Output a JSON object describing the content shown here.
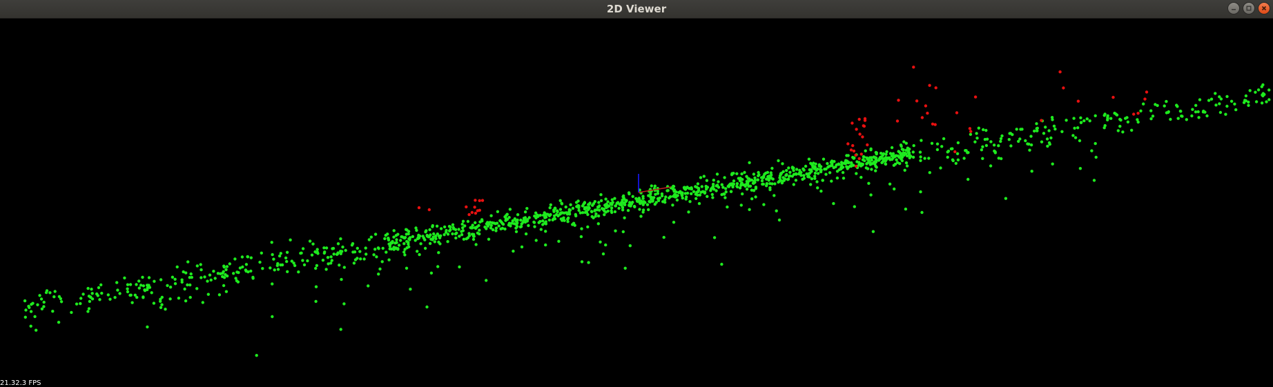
{
  "window": {
    "title": "2D Viewer",
    "controls": [
      {
        "name": "minimize-button",
        "icon": "minimize-icon"
      },
      {
        "name": "maximize-button",
        "icon": "maximize-icon"
      },
      {
        "name": "close-button",
        "icon": "close-icon"
      }
    ]
  },
  "viewer": {
    "fps_text": "21.32.3 FPS",
    "background_color": "#000000",
    "colors": {
      "ground_points": "#1eea1e",
      "obstacle_points": "#e81010",
      "axis_z": "#1a1aff",
      "axis_x": "#c02020"
    },
    "point_groups": [
      "ground_points",
      "obstacle_points"
    ]
  }
}
